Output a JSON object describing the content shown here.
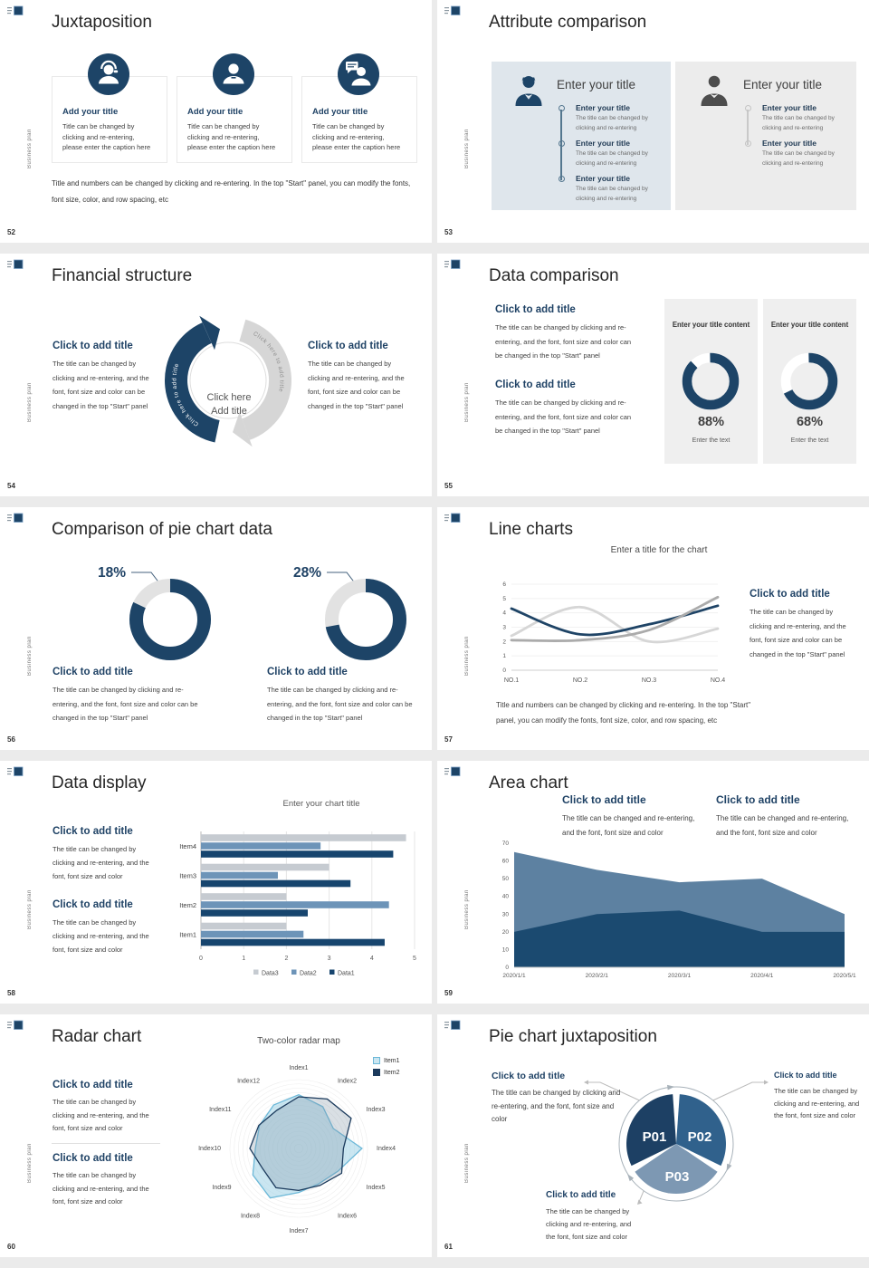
{
  "page": {
    "sidebar_text": "Business plan"
  },
  "slides": {
    "s52": {
      "number": "52",
      "title": "Juxtaposition",
      "cards": [
        {
          "icon": "support-agent-icon",
          "title": "Add your title",
          "caption": "Title can be changed by clicking and re-entering, please enter the caption here"
        },
        {
          "icon": "person-icon",
          "title": "Add your title",
          "caption": "Title can be changed by clicking and re-entering, please enter the caption here"
        },
        {
          "icon": "person-chat-icon",
          "title": "Add your title",
          "caption": "Title can be changed by clicking and re-entering, please enter the caption here"
        }
      ],
      "footer": "Title and numbers can be changed by clicking and re-entering. In the top \"Start\" panel, you can modify the fonts, font size, color, and row spacing, etc"
    },
    "s53": {
      "number": "53",
      "title": "Attribute comparison",
      "left_panel": {
        "title": "Enter your title",
        "items": [
          {
            "title": "Enter your title",
            "caption": "The title can be changed by clicking and re-entering"
          },
          {
            "title": "Enter your title",
            "caption": "The title can be changed by clicking and re-entering"
          },
          {
            "title": "Enter your title",
            "caption": "The title can be changed by clicking and re-entering"
          }
        ]
      },
      "right_panel": {
        "title": "Enter your title",
        "items": [
          {
            "title": "Enter your title",
            "caption": "The title can be changed by clicking and re-entering"
          },
          {
            "title": "Enter your title",
            "caption": "The title can be changed by clicking and re-entering"
          }
        ]
      }
    },
    "s54": {
      "number": "54",
      "title": "Financial structure",
      "left": {
        "title": "Click to add title",
        "caption": "The title can be changed by clicking and re-entering, and the font, font size and color can be changed in the top \"Start\" panel"
      },
      "right": {
        "title": "Click to add title",
        "caption": "The title can be changed by clicking and re-entering, and the font, font size and color can be changed in the top \"Start\" panel"
      },
      "center_line1": "Click here",
      "center_line2": "Add title",
      "arc_label": "Click here to add title"
    },
    "s55": {
      "number": "55",
      "title": "Data comparison",
      "blocks": [
        {
          "title": "Click to add title",
          "caption": "The title can be changed by clicking and re-entering, and the font, font size and color can be changed in the top \"Start\" panel"
        },
        {
          "title": "Click to add title",
          "caption": "The title can be changed by clicking and re-entering, and the font, font size and color can be changed in the top \"Start\" panel"
        }
      ],
      "cards": [
        {
          "title": "Enter your title content",
          "percent_label": "88%",
          "caption": "Enter the text"
        },
        {
          "title": "Enter your title content",
          "percent_label": "68%",
          "caption": "Enter the text"
        }
      ]
    },
    "s56": {
      "number": "56",
      "title": "Comparison of pie chart data",
      "donuts": [
        {
          "title": "Click to add title",
          "caption": "The title can be changed by clicking and re-entering, and the font, font size and color can be changed in the top \"Start\" panel"
        },
        {
          "title": "Click to add title",
          "caption": "The title can be changed by clicking and re-entering, and the font, font size and color can be changed in the top \"Start\" panel"
        }
      ]
    },
    "s57": {
      "number": "57",
      "title": "Line charts",
      "block": {
        "title": "Click to add title",
        "caption": "The title can be changed by clicking and re-entering, and the font, font size and color can be changed in the top \"Start\" panel"
      },
      "footer": "Title and numbers can be changed by clicking and re-entering. In the top \"Start\" panel, you can modify the fonts, font size, color, and row spacing, etc"
    },
    "s58": {
      "number": "58",
      "title": "Data display",
      "blocks": [
        {
          "title": "Click to add title",
          "caption": "The title can be changed by clicking and re-entering, and the font, font size and color"
        },
        {
          "title": "Click to add title",
          "caption": "The title can be changed by clicking and re-entering, and the font, font size and color"
        }
      ]
    },
    "s59": {
      "number": "59",
      "title": "Area chart",
      "blocks": [
        {
          "title": "Click to add title",
          "caption": "The title can be changed and re-entering, and the font, font size and color"
        },
        {
          "title": "Click to add title",
          "caption": "The title can be changed and re-entering, and the font, font size and color"
        }
      ]
    },
    "s60": {
      "number": "60",
      "title": "Radar chart",
      "blocks": [
        {
          "title": "Click to add title",
          "caption": "The title can be changed by clicking and re-entering, and the font, font size and color"
        },
        {
          "title": "Click to add title",
          "caption": "The title can be changed by clicking and re-entering, and the font, font size and color"
        }
      ]
    },
    "s61": {
      "number": "61",
      "title": "Pie chart juxtaposition",
      "callouts": [
        {
          "title": "Click to add title",
          "caption": "The title can be changed by clicking and re-entering, and the font, font size and color"
        },
        {
          "title": "Click to add title",
          "caption": "The title can be changed by clicking and re-entering, and the font, font size and color"
        },
        {
          "title": "Click to add title",
          "caption": "The title can be changed by clicking and re-entering, and the font, font size and color"
        }
      ]
    }
  },
  "chart_data": [
    {
      "id": "donut-88",
      "type": "donut",
      "percent": 88,
      "label": "88%",
      "color": "#1d4467",
      "track": "#ffffff"
    },
    {
      "id": "donut-68",
      "type": "donut",
      "percent": 68,
      "label": "68%",
      "color": "#1d4467",
      "track": "#ffffff"
    },
    {
      "id": "donut-18",
      "type": "donut",
      "slices": [
        {
          "value": 82,
          "color": "#1d4467"
        },
        {
          "label": "18%",
          "value": 18,
          "color": "#e2e2e2"
        }
      ]
    },
    {
      "id": "donut-28",
      "type": "donut",
      "slices": [
        {
          "value": 72,
          "color": "#1d4467"
        },
        {
          "label": "28%",
          "value": 28,
          "color": "#e2e2e2"
        }
      ]
    },
    {
      "id": "line-chart",
      "type": "line",
      "title": "Enter a title for the chart",
      "x_labels": [
        "NO.1",
        "NO.2",
        "NO.3",
        "NO.4"
      ],
      "ylim": [
        0,
        6
      ],
      "yticks": [
        0,
        1,
        2,
        3,
        4,
        5,
        6
      ],
      "series": [
        {
          "color": "#1f4466",
          "values": [
            4.3,
            2.5,
            3.2,
            4.5
          ]
        },
        {
          "color": "#d6d6d6",
          "values": [
            2.4,
            4.4,
            2.0,
            2.9
          ]
        },
        {
          "color": "#ababab",
          "values": [
            2.1,
            2.1,
            2.8,
            5.1
          ]
        }
      ]
    },
    {
      "id": "bar-chart",
      "type": "bar",
      "title": "Enter your chart title",
      "categories": [
        "Item4",
        "Item3",
        "Item2",
        "Item1"
      ],
      "xlim": [
        0,
        5
      ],
      "xticks": [
        "0",
        "1",
        "2",
        "3",
        "4",
        "5"
      ],
      "series": [
        {
          "name": "Data3",
          "color": "#c6cbd1",
          "values": [
            4.8,
            3.0,
            2.0,
            2.0
          ]
        },
        {
          "name": "Data2",
          "color": "#6d94b8",
          "values": [
            2.8,
            1.8,
            4.4,
            2.4
          ]
        },
        {
          "name": "Data1",
          "color": "#17456e",
          "values": [
            4.5,
            3.5,
            2.5,
            4.3
          ]
        }
      ],
      "legend_order": [
        "Data3",
        "Data2",
        "Data1"
      ]
    },
    {
      "id": "area-chart",
      "type": "area",
      "x_labels": [
        "2020/1/1",
        "2020/2/1",
        "2020/3/1",
        "2020/4/1",
        "2020/5/1"
      ],
      "ylim": [
        0,
        70
      ],
      "yticks": [
        0,
        10,
        20,
        30,
        40,
        50,
        60,
        70
      ],
      "series": [
        {
          "color": "#5d81a1",
          "values": [
            65,
            55,
            48,
            50,
            30
          ]
        },
        {
          "color": "#1b4a70",
          "values": [
            20,
            30,
            32,
            20,
            20
          ]
        }
      ]
    },
    {
      "id": "radar-chart",
      "type": "radar",
      "title": "Two-color radar map",
      "axes": [
        "Index1",
        "Index2",
        "Index3",
        "Index4",
        "Index5",
        "Index6",
        "Index7",
        "Index8",
        "Index9",
        "Index10",
        "Index11",
        "Index12"
      ],
      "rmax": 10,
      "series": [
        {
          "name": "Item1",
          "color": "#6cb8d8",
          "fill": "rgba(150,205,228,0.5)",
          "values": [
            7.8,
            7.0,
            5.8,
            9.2,
            6.6,
            5.9,
            6.4,
            8.3,
            7.7,
            6.3,
            6.6,
            7.3
          ]
        },
        {
          "name": "Item2",
          "color": "#1b3a5c",
          "fill": "rgba(130,150,165,0.3)",
          "values": [
            7.5,
            8.3,
            8.8,
            6.5,
            7.2,
            6.2,
            6.1,
            6.6,
            6.0,
            7.1,
            6.7,
            6.4
          ]
        }
      ]
    },
    {
      "id": "pie-3",
      "type": "pie",
      "slices": [
        {
          "label": "P01",
          "value": 33.3,
          "color": "#1d4064"
        },
        {
          "label": "P02",
          "value": 33.3,
          "color": "#30618c"
        },
        {
          "label": "P03",
          "value": 33.3,
          "color": "#7d98b3"
        }
      ]
    }
  ]
}
